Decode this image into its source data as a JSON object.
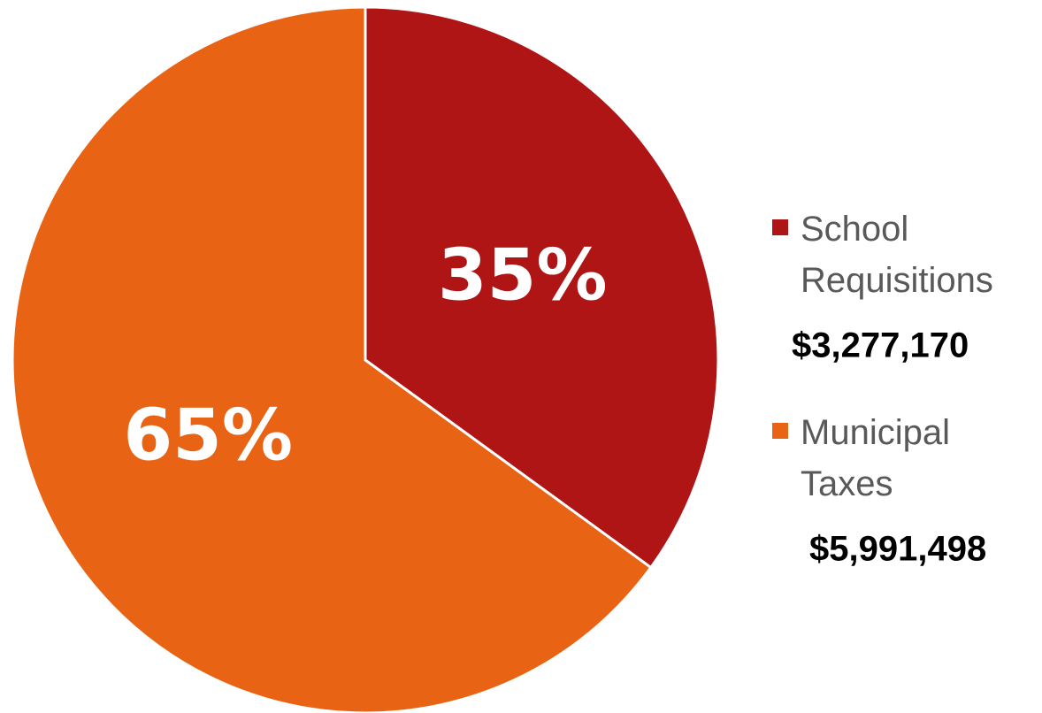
{
  "chart_data": {
    "type": "pie",
    "series": [
      {
        "name": "School Requisitions",
        "color": "#b01515",
        "values": [
          35
        ],
        "value_labels": [
          "35%"
        ],
        "amount_label": "$3,277,170"
      },
      {
        "name": "Municipal Taxes",
        "color": "#e86314",
        "values": [
          65
        ],
        "value_labels": [
          "65%"
        ],
        "amount_label": "$5,991,498"
      }
    ],
    "start": "top",
    "direction": "clockwise",
    "legend": "right"
  }
}
